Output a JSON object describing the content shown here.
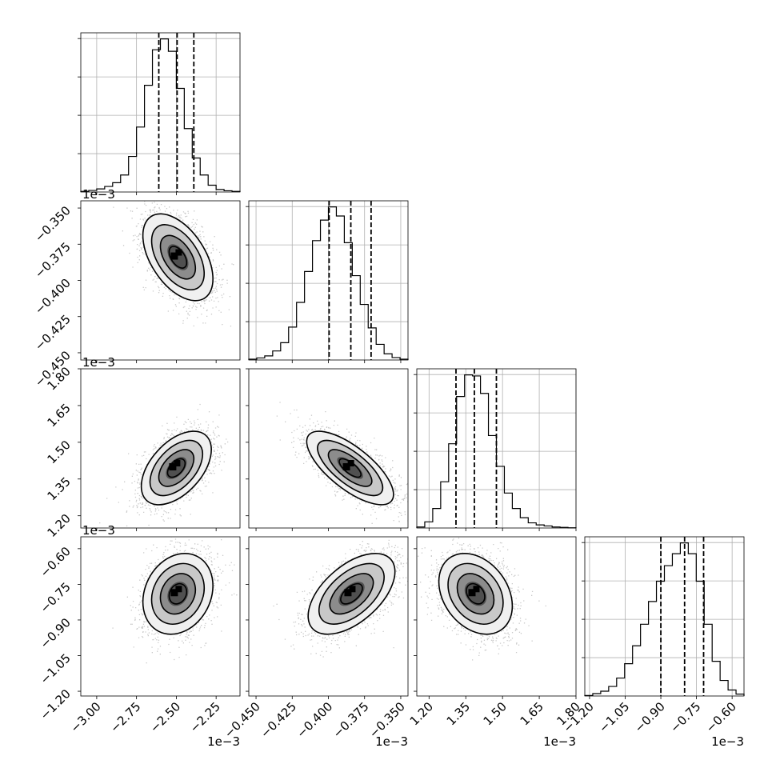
{
  "chart_data": {
    "type": "corner",
    "title": "",
    "grid": true,
    "parameters": [
      {
        "range": [
          -3.1,
          -2.1
        ],
        "ticks": [
          -3.0,
          -2.75,
          -2.5,
          -2.25
        ],
        "tick_labels": [
          "−3.00",
          "−2.75",
          "−2.50",
          "−2.25"
        ],
        "offset_label": "1e−3",
        "quantile_lines": [
          -2.61,
          -2.495,
          -2.39
        ],
        "histogram": {
          "bins": [
            -3.1,
            -3.05,
            -3.0,
            -2.95,
            -2.9,
            -2.85,
            -2.8,
            -2.75,
            -2.7,
            -2.65,
            -2.6,
            -2.55,
            -2.5,
            -2.45,
            -2.4,
            -2.35,
            -2.3,
            -2.25,
            -2.2,
            -2.15,
            -2.1
          ],
          "counts": [
            2,
            5,
            10,
            18,
            30,
            55,
            115,
            210,
            345,
            460,
            495,
            455,
            335,
            205,
            110,
            55,
            22,
            8,
            4,
            2
          ]
        }
      },
      {
        "range": [
          -0.455,
          -0.345
        ],
        "ticks": [
          -0.45,
          -0.425,
          -0.4,
          -0.375,
          -0.35
        ],
        "tick_labels": [
          "−0.450",
          "−0.425",
          "−0.400",
          "−0.375",
          "−0.350"
        ],
        "offset_label": "1e−3",
        "quantile_lines": [
          -0.3995,
          -0.3845,
          -0.3705
        ],
        "histogram": {
          "bins": [
            -0.455,
            -0.4495,
            -0.444,
            -0.4385,
            -0.433,
            -0.4275,
            -0.422,
            -0.4165,
            -0.411,
            -0.4055,
            -0.4,
            -0.3945,
            -0.389,
            -0.3835,
            -0.378,
            -0.3725,
            -0.367,
            -0.3615,
            -0.356,
            -0.3505,
            -0.345
          ],
          "counts": [
            2,
            5,
            10,
            22,
            42,
            80,
            140,
            215,
            290,
            340,
            372,
            350,
            285,
            205,
            135,
            78,
            38,
            15,
            6,
            2
          ]
        }
      },
      {
        "range": [
          1.15,
          1.8
        ],
        "ticks": [
          1.2,
          1.35,
          1.5,
          1.65,
          1.8
        ],
        "tick_labels": [
          "1.20",
          "1.35",
          "1.50",
          "1.65",
          "1.80"
        ],
        "offset_label": "1e−3",
        "quantile_lines": [
          1.31,
          1.385,
          1.475
        ],
        "histogram": {
          "bins": [
            1.15,
            1.1825,
            1.215,
            1.2475,
            1.28,
            1.3125,
            1.345,
            1.3775,
            1.41,
            1.4425,
            1.475,
            1.5075,
            1.54,
            1.5725,
            1.605,
            1.6375,
            1.67,
            1.7025,
            1.735,
            1.7675,
            1.8
          ],
          "counts": [
            5,
            30,
            95,
            225,
            410,
            640,
            745,
            740,
            655,
            450,
            300,
            170,
            95,
            50,
            25,
            15,
            10,
            5,
            3,
            1
          ]
        }
      },
      {
        "range": [
          -1.22,
          -0.55
        ],
        "ticks": [
          -1.2,
          -1.05,
          -0.9,
          -0.75,
          -0.6
        ],
        "tick_labels": [
          "−1.20",
          "−1.05",
          "−0.90",
          "−0.75",
          "−0.60"
        ],
        "offset_label": "1e−3",
        "quantile_lines": [
          -0.9,
          -0.8,
          -0.72
        ],
        "histogram": {
          "bins": [
            -1.22,
            -1.1865,
            -1.153,
            -1.1195,
            -1.086,
            -1.0525,
            -1.019,
            -0.9855,
            -0.952,
            -0.9185,
            -0.885,
            -0.8515,
            -0.818,
            -0.7845,
            -0.751,
            -0.7175,
            -0.684,
            -0.6505,
            -0.617,
            -0.5835,
            -0.55
          ],
          "counts": [
            2,
            10,
            20,
            40,
            75,
            135,
            210,
            300,
            395,
            480,
            545,
            595,
            640,
            595,
            480,
            300,
            145,
            65,
            25,
            8
          ]
        }
      }
    ],
    "pairs": [
      {
        "row": 1,
        "col": 0,
        "mean": [
          -2.49,
          -0.384
        ],
        "sd": [
          0.11,
          0.015
        ],
        "corr": -0.5
      },
      {
        "row": 2,
        "col": 0,
        "mean": [
          -2.5,
          1.395
        ],
        "sd": [
          0.11,
          0.075
        ],
        "corr": 0.5
      },
      {
        "row": 2,
        "col": 1,
        "mean": [
          -0.385,
          1.395
        ],
        "sd": [
          0.015,
          0.075
        ],
        "corr": -0.72
      },
      {
        "row": 3,
        "col": 0,
        "mean": [
          -2.49,
          -0.79
        ],
        "sd": [
          0.11,
          0.085
        ],
        "corr": 0.2
      },
      {
        "row": 3,
        "col": 1,
        "mean": [
          -0.384,
          -0.79
        ],
        "sd": [
          0.015,
          0.085
        ],
        "corr": 0.55
      },
      {
        "row": 3,
        "col": 2,
        "mean": [
          1.39,
          -0.79
        ],
        "sd": [
          0.075,
          0.085
        ],
        "corr": -0.3
      }
    ]
  }
}
